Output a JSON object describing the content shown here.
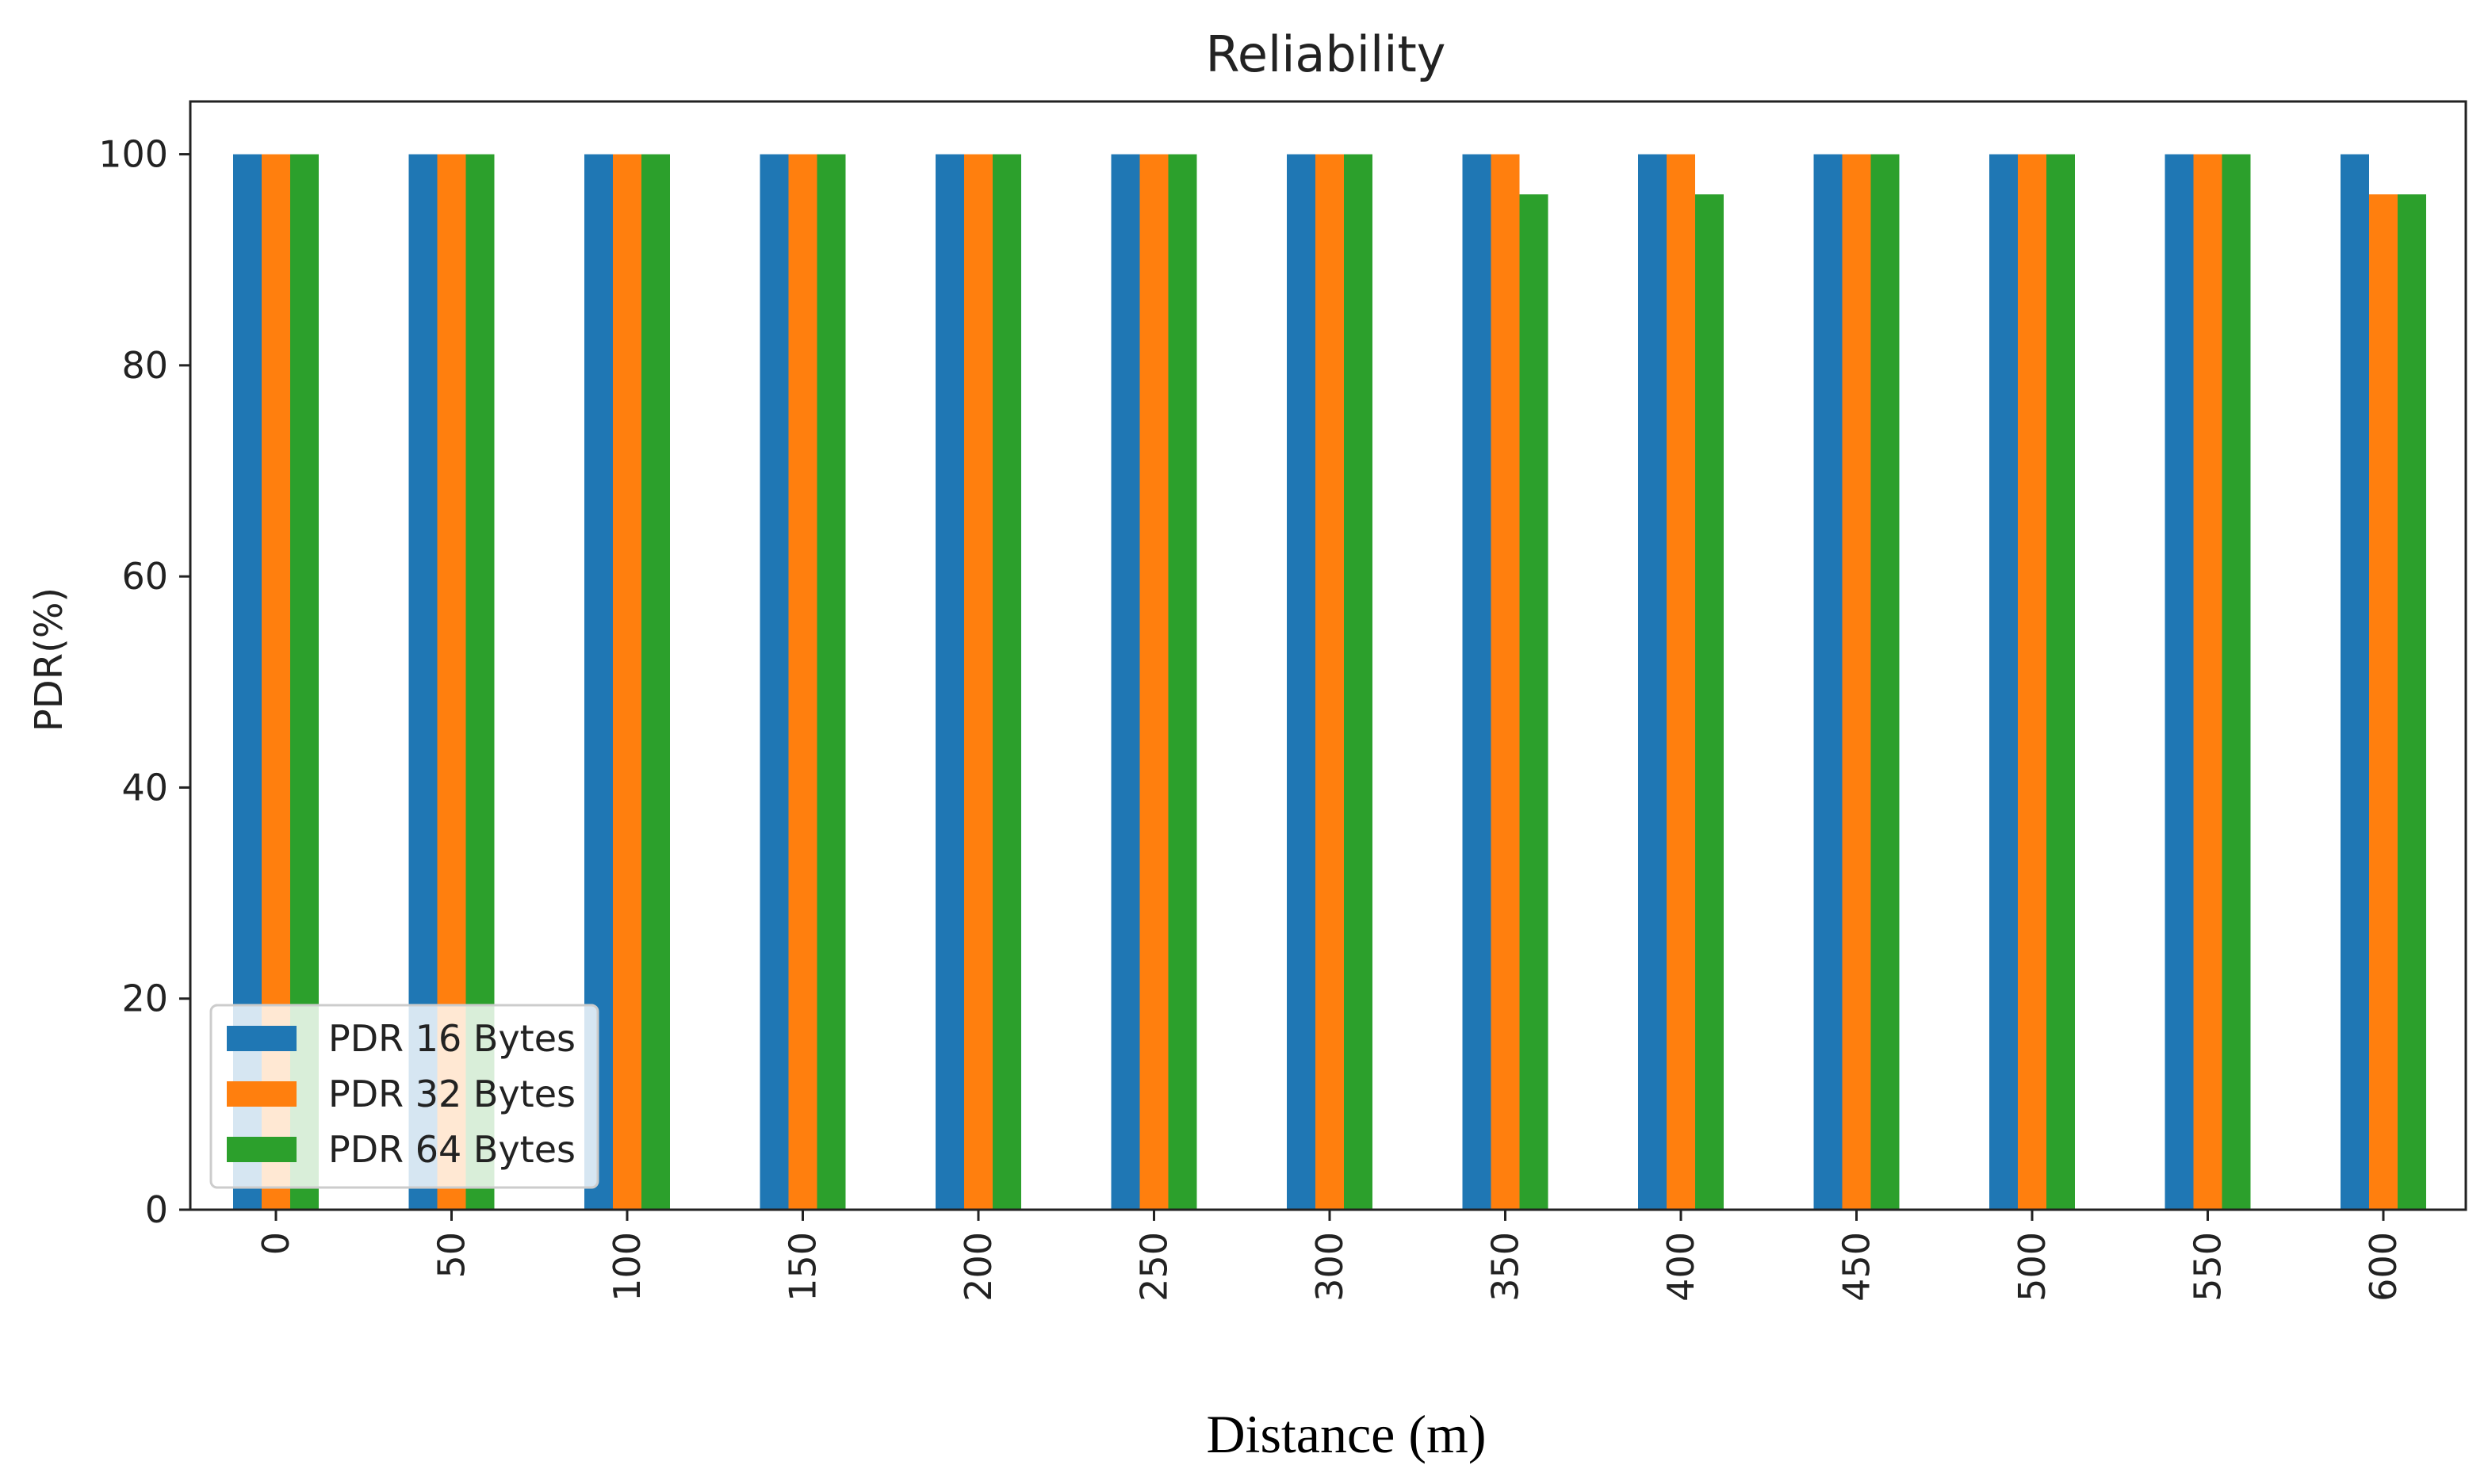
{
  "chart_data": {
    "type": "bar",
    "title": "Reliability",
    "xlabel": "Distance (m)",
    "ylabel": "PDR(%)",
    "categories": [
      "0",
      "50",
      "100",
      "150",
      "200",
      "250",
      "300",
      "350",
      "400",
      "450",
      "500",
      "550",
      "600"
    ],
    "series": [
      {
        "name": "PDR 16 Bytes",
        "color": "#1f77b4",
        "values": [
          100,
          100,
          100,
          100,
          100,
          100,
          100,
          100,
          100,
          100,
          100,
          100,
          100
        ]
      },
      {
        "name": "PDR 32 Bytes",
        "color": "#ff7f0e",
        "values": [
          100,
          100,
          100,
          100,
          100,
          100,
          100,
          100,
          100,
          100,
          100,
          100,
          96.2
        ]
      },
      {
        "name": "PDR 64 Bytes",
        "color": "#2ca02c",
        "values": [
          100,
          100,
          100,
          100,
          100,
          100,
          100,
          96.2,
          96.2,
          100,
          100,
          100,
          96.2
        ]
      }
    ],
    "ylim": [
      0,
      105
    ],
    "yticks": [
      0,
      20,
      40,
      60,
      80,
      100
    ],
    "legend_position": "lower-left",
    "grid": false
  }
}
